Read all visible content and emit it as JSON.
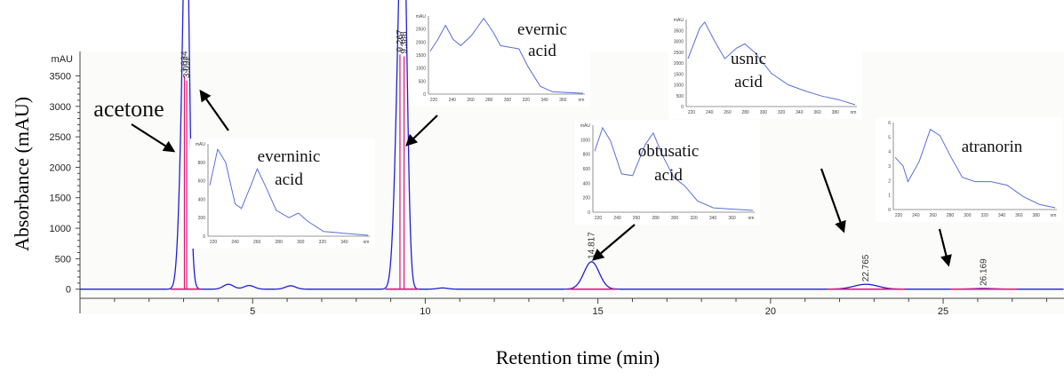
{
  "chart_data": {
    "type": "line",
    "xlabel": "Retention time (min)",
    "ylabel": "Absorbance (mAU)",
    "unit": "mAU",
    "xlim": [
      0,
      28.5
    ],
    "ylim": [
      -150,
      3900
    ],
    "xticks": [
      5,
      10,
      15,
      20,
      25
    ],
    "yticks": [
      0,
      500,
      1000,
      1500,
      2000,
      2500,
      3000,
      3500
    ],
    "grid": false,
    "peaks": [
      {
        "rt": 3.024,
        "height": 3500,
        "width": 0.12,
        "label": "3.024"
      },
      {
        "rt": 3.092,
        "height": 3420,
        "width": 0.08,
        "label": "3.092"
      },
      {
        "rt": 9.267,
        "height": 3850,
        "width": 0.13,
        "label": "9.267"
      },
      {
        "rt": 9.386,
        "height": 3820,
        "width": 0.1,
        "label": "9.386"
      },
      {
        "rt": 14.817,
        "height": 450,
        "width": 0.22,
        "label": "14.817"
      },
      {
        "rt": 22.765,
        "height": 80,
        "width": 0.35,
        "label": "22.765"
      },
      {
        "rt": 26.169,
        "height": 12,
        "width": 0.3,
        "label": "26.169"
      }
    ],
    "minor_peaks": [
      {
        "rt": 4.3,
        "height": 80
      },
      {
        "rt": 4.9,
        "height": 60
      },
      {
        "rt": 6.1,
        "height": 55
      },
      {
        "rt": 10.5,
        "height": 20
      }
    ],
    "annotations": [
      {
        "text": "acetone"
      },
      {
        "text": "evernic"
      },
      {
        "text": "acid"
      },
      {
        "text": "everninic"
      },
      {
        "text": "acid"
      },
      {
        "text": "obtusatic"
      },
      {
        "text": "acid"
      },
      {
        "text": "usnic"
      },
      {
        "text": "acid"
      },
      {
        "text": "atranorin"
      }
    ],
    "insets": [
      {
        "name": "evernic acid",
        "xticks": [
          "220",
          "240",
          "260",
          "280",
          "300",
          "320",
          "340",
          "360",
          "nm"
        ],
        "yticks": [
          "mAU",
          "2500",
          "2000",
          "1500",
          "1000",
          "500",
          "0"
        ],
        "spectrum": [
          [
            0,
            0.55
          ],
          [
            0.05,
            0.7
          ],
          [
            0.1,
            0.88
          ],
          [
            0.15,
            0.7
          ],
          [
            0.2,
            0.62
          ],
          [
            0.27,
            0.75
          ],
          [
            0.35,
            0.97
          ],
          [
            0.41,
            0.8
          ],
          [
            0.46,
            0.62
          ],
          [
            0.52,
            0.6
          ],
          [
            0.58,
            0.58
          ],
          [
            0.64,
            0.35
          ],
          [
            0.72,
            0.1
          ],
          [
            0.8,
            0.03
          ],
          [
            1,
            0.01
          ]
        ]
      },
      {
        "name": "usnic acid",
        "xticks": [
          "220",
          "240",
          "260",
          "280",
          "300",
          "320",
          "340",
          "360",
          "380",
          "nm"
        ],
        "yticks": [
          "mAU",
          "3500",
          "3000",
          "2500",
          "2000",
          "1500",
          "1000",
          "500",
          "0"
        ],
        "spectrum": [
          [
            0,
            0.55
          ],
          [
            0.07,
            0.9
          ],
          [
            0.1,
            0.97
          ],
          [
            0.16,
            0.75
          ],
          [
            0.22,
            0.55
          ],
          [
            0.29,
            0.67
          ],
          [
            0.34,
            0.72
          ],
          [
            0.4,
            0.62
          ],
          [
            0.5,
            0.38
          ],
          [
            0.6,
            0.25
          ],
          [
            0.7,
            0.18
          ],
          [
            0.8,
            0.12
          ],
          [
            0.9,
            0.08
          ],
          [
            1,
            0.02
          ]
        ]
      },
      {
        "name": "everninic acid",
        "xticks": [
          "220",
          "240",
          "260",
          "280",
          "300",
          "320",
          "340",
          "nm"
        ],
        "yticks": [
          "mAU",
          "800",
          "600",
          "400",
          "200",
          "0"
        ],
        "spectrum": [
          [
            0,
            0.55
          ],
          [
            0.05,
            0.94
          ],
          [
            0.1,
            0.8
          ],
          [
            0.16,
            0.35
          ],
          [
            0.2,
            0.3
          ],
          [
            0.26,
            0.55
          ],
          [
            0.3,
            0.73
          ],
          [
            0.35,
            0.55
          ],
          [
            0.42,
            0.28
          ],
          [
            0.5,
            0.2
          ],
          [
            0.56,
            0.25
          ],
          [
            0.62,
            0.16
          ],
          [
            0.72,
            0.05
          ],
          [
            1,
            0.01
          ]
        ]
      },
      {
        "name": "obtusatic acid",
        "xticks": [
          "220",
          "240",
          "260",
          "280",
          "300",
          "320",
          "340",
          "360",
          "nm"
        ],
        "yticks": [
          "mAU",
          "1000",
          "800",
          "600",
          "400",
          "200",
          "0"
        ],
        "spectrum": [
          [
            0,
            0.7
          ],
          [
            0.05,
            0.97
          ],
          [
            0.1,
            0.82
          ],
          [
            0.17,
            0.44
          ],
          [
            0.24,
            0.42
          ],
          [
            0.32,
            0.78
          ],
          [
            0.37,
            0.91
          ],
          [
            0.43,
            0.65
          ],
          [
            0.5,
            0.4
          ],
          [
            0.57,
            0.3
          ],
          [
            0.65,
            0.13
          ],
          [
            0.75,
            0.05
          ],
          [
            1,
            0.02
          ]
        ]
      },
      {
        "name": "atranorin",
        "xticks": [
          "220",
          "240",
          "260",
          "280",
          "300",
          "320",
          "340",
          "360",
          "380",
          "nm"
        ],
        "yticks": [
          "6",
          "5",
          "4",
          "3",
          "2",
          "1",
          "0"
        ],
        "spectrum": [
          [
            0,
            0.6
          ],
          [
            0.05,
            0.5
          ],
          [
            0.08,
            0.32
          ],
          [
            0.15,
            0.55
          ],
          [
            0.22,
            0.92
          ],
          [
            0.28,
            0.85
          ],
          [
            0.35,
            0.6
          ],
          [
            0.42,
            0.37
          ],
          [
            0.5,
            0.32
          ],
          [
            0.6,
            0.32
          ],
          [
            0.7,
            0.28
          ],
          [
            0.8,
            0.15
          ],
          [
            0.9,
            0.06
          ],
          [
            1,
            0.02
          ]
        ]
      }
    ],
    "colors": {
      "trace": "#1f1fd8",
      "baseline": "#e0157a",
      "axis": "#444444",
      "arrow": "#000000"
    }
  }
}
